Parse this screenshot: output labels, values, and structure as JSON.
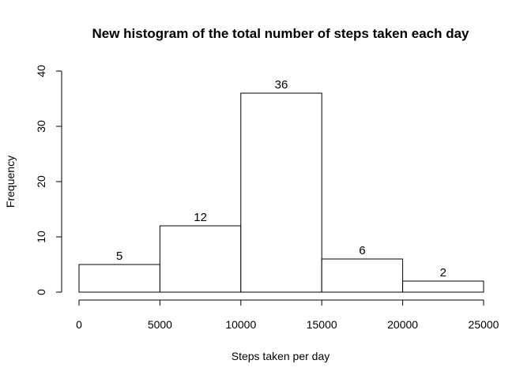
{
  "chart_data": {
    "type": "bar",
    "title": "New histogram of the total number of steps taken each day",
    "xlabel": "Steps taken per day",
    "ylabel": "Frequency",
    "bins": [
      {
        "x0": 0,
        "x1": 5000,
        "value": 5,
        "label": "5"
      },
      {
        "x0": 5000,
        "x1": 10000,
        "value": 12,
        "label": "12"
      },
      {
        "x0": 10000,
        "x1": 15000,
        "value": 36,
        "label": "36"
      },
      {
        "x0": 15000,
        "x1": 20000,
        "value": 6,
        "label": "6"
      },
      {
        "x0": 20000,
        "x1": 25000,
        "value": 2,
        "label": "2"
      }
    ],
    "xlim": [
      0,
      25000
    ],
    "ylim": [
      0,
      40
    ],
    "xticks": [
      {
        "value": 0,
        "label": "0"
      },
      {
        "value": 5000,
        "label": "5000"
      },
      {
        "value": 10000,
        "label": "10000"
      },
      {
        "value": 15000,
        "label": "15000"
      },
      {
        "value": 20000,
        "label": "20000"
      },
      {
        "value": 25000,
        "label": "25000"
      }
    ],
    "yticks": [
      {
        "value": 0,
        "label": "0"
      },
      {
        "value": 10,
        "label": "10"
      },
      {
        "value": 20,
        "label": "20"
      },
      {
        "value": 30,
        "label": "30"
      },
      {
        "value": 40,
        "label": "40"
      }
    ],
    "grid": false,
    "legend": "none",
    "bar_fill": "#ffffff",
    "bar_stroke": "#000000"
  }
}
